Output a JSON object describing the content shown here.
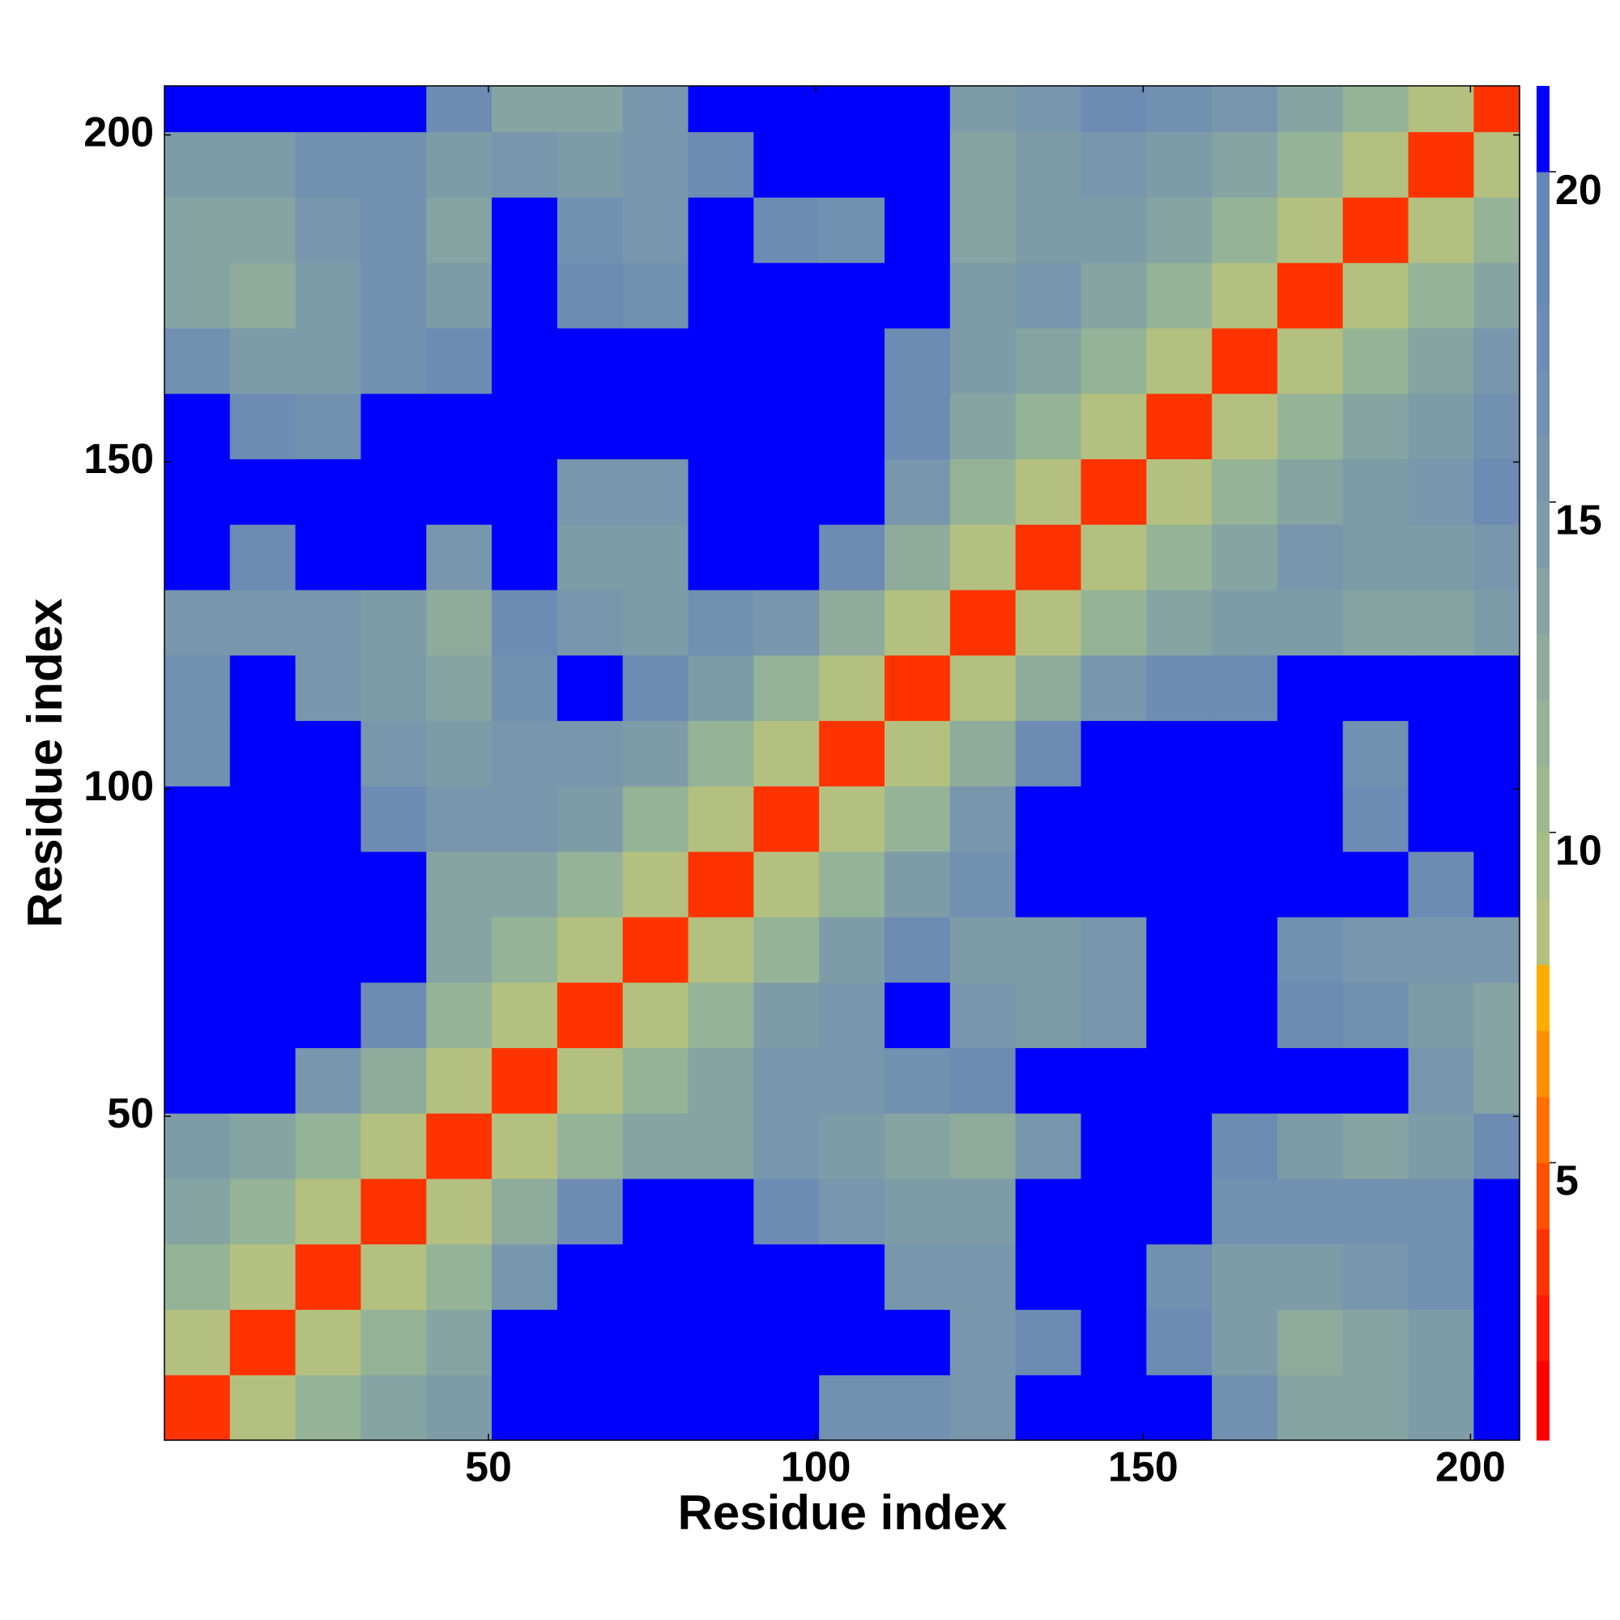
{
  "chart_data": {
    "type": "heatmap",
    "xlabel": "Residue index",
    "ylabel": "Residue index",
    "bins": [
      0.5,
      10.5,
      20.5,
      30.5,
      40.5,
      50.5,
      60.5,
      70.5,
      80.5,
      90.5,
      100.5,
      110.5,
      120.5,
      130.5,
      140.5,
      150.5,
      160.5,
      170.5,
      180.5,
      190.5,
      200.5,
      207.5
    ],
    "xlim": [
      0.5,
      207.5
    ],
    "ylim": [
      0.5,
      207.5
    ],
    "xticks": [
      50,
      100,
      150,
      200
    ],
    "yticks": [
      50,
      100,
      150,
      200
    ],
    "z": [
      [
        4,
        9,
        12,
        14,
        15,
        21,
        21,
        21,
        21,
        21,
        17,
        17,
        16,
        21,
        21,
        21,
        17,
        14,
        14,
        15,
        21
      ],
      [
        9,
        4,
        9,
        12,
        14,
        21,
        21,
        21,
        21,
        21,
        21,
        21,
        16,
        18,
        21,
        18,
        15,
        13,
        14,
        15,
        21
      ],
      [
        12,
        9,
        4,
        9,
        12,
        16,
        21,
        21,
        21,
        21,
        21,
        16,
        16,
        21,
        21,
        17,
        15,
        15,
        16,
        17,
        21
      ],
      [
        14,
        12,
        9,
        4,
        9,
        13,
        18,
        21,
        21,
        18,
        16,
        15,
        15,
        21,
        21,
        21,
        17,
        17,
        17,
        17,
        21
      ],
      [
        15,
        14,
        12,
        9,
        4,
        9,
        12,
        14,
        14,
        16,
        15,
        14,
        13,
        16,
        21,
        21,
        18,
        15,
        14,
        15,
        18
      ],
      [
        21,
        21,
        16,
        13,
        9,
        4,
        9,
        12,
        14,
        16,
        16,
        17,
        18,
        21,
        21,
        21,
        21,
        21,
        21,
        16,
        14
      ],
      [
        21,
        21,
        21,
        18,
        12,
        9,
        4,
        9,
        12,
        15,
        16,
        21,
        16,
        15,
        16,
        21,
        21,
        18,
        17,
        15,
        14
      ],
      [
        21,
        21,
        21,
        21,
        14,
        12,
        9,
        4,
        9,
        12,
        15,
        18,
        15,
        15,
        16,
        21,
        21,
        17,
        16,
        16,
        16
      ],
      [
        21,
        21,
        21,
        21,
        14,
        14,
        12,
        9,
        4,
        9,
        12,
        15,
        17,
        21,
        21,
        21,
        21,
        21,
        21,
        18,
        21
      ],
      [
        21,
        21,
        21,
        18,
        16,
        16,
        15,
        12,
        9,
        4,
        9,
        12,
        16,
        21,
        21,
        21,
        21,
        21,
        18,
        21,
        21
      ],
      [
        17,
        21,
        21,
        16,
        15,
        16,
        16,
        15,
        12,
        9,
        4,
        9,
        13,
        18,
        21,
        21,
        21,
        21,
        17,
        21,
        21
      ],
      [
        17,
        21,
        16,
        15,
        14,
        17,
        21,
        18,
        15,
        12,
        9,
        4,
        9,
        13,
        16,
        18,
        18,
        21,
        21,
        21,
        21
      ],
      [
        16,
        16,
        16,
        15,
        13,
        18,
        16,
        15,
        17,
        16,
        13,
        9,
        4,
        9,
        12,
        14,
        15,
        15,
        14,
        14,
        15
      ],
      [
        21,
        18,
        21,
        21,
        16,
        21,
        15,
        15,
        21,
        21,
        18,
        13,
        9,
        4,
        9,
        12,
        14,
        16,
        15,
        15,
        16
      ],
      [
        21,
        21,
        21,
        21,
        21,
        21,
        16,
        16,
        21,
        21,
        21,
        16,
        12,
        9,
        4,
        9,
        12,
        14,
        15,
        16,
        18
      ],
      [
        21,
        18,
        17,
        21,
        21,
        21,
        21,
        21,
        21,
        21,
        21,
        18,
        14,
        12,
        9,
        4,
        9,
        12,
        14,
        15,
        17
      ],
      [
        17,
        15,
        15,
        17,
        18,
        21,
        21,
        21,
        21,
        21,
        21,
        18,
        15,
        14,
        12,
        9,
        4,
        9,
        12,
        14,
        16
      ],
      [
        14,
        13,
        15,
        17,
        15,
        21,
        18,
        17,
        21,
        21,
        21,
        21,
        15,
        16,
        14,
        12,
        9,
        4,
        9,
        12,
        14
      ],
      [
        14,
        14,
        16,
        17,
        14,
        21,
        17,
        16,
        21,
        18,
        17,
        21,
        14,
        15,
        15,
        14,
        12,
        9,
        4,
        9,
        12
      ],
      [
        15,
        15,
        17,
        17,
        15,
        16,
        15,
        16,
        18,
        21,
        21,
        21,
        14,
        15,
        16,
        15,
        14,
        12,
        9,
        4,
        9
      ],
      [
        21,
        21,
        21,
        21,
        18,
        14,
        14,
        16,
        21,
        21,
        21,
        21,
        15,
        16,
        18,
        17,
        16,
        14,
        12,
        9,
        4
      ]
    ],
    "colorbar": {
      "lim": [
        0.8,
        21.3
      ],
      "ticks": [
        5,
        10,
        15,
        20
      ],
      "levels": [
        0.8,
        2,
        3,
        4,
        5,
        6,
        7,
        8,
        9,
        10,
        11,
        12,
        13,
        14,
        15,
        16,
        17,
        18,
        19,
        20,
        21.3
      ],
      "colors": [
        "#ff0000",
        "#ff1a00",
        "#ff3300",
        "#ff5000",
        "#ff7000",
        "#ff9000",
        "#ffae00",
        "#b4c080",
        "#a8bd88",
        "#9eb98e",
        "#95b396",
        "#8eab9c",
        "#86a4a2",
        "#7e9ca8",
        "#7896ac",
        "#7290b0",
        "#6d8bb3",
        "#6888b5",
        "#6685b8",
        "#0000ff"
      ]
    }
  }
}
